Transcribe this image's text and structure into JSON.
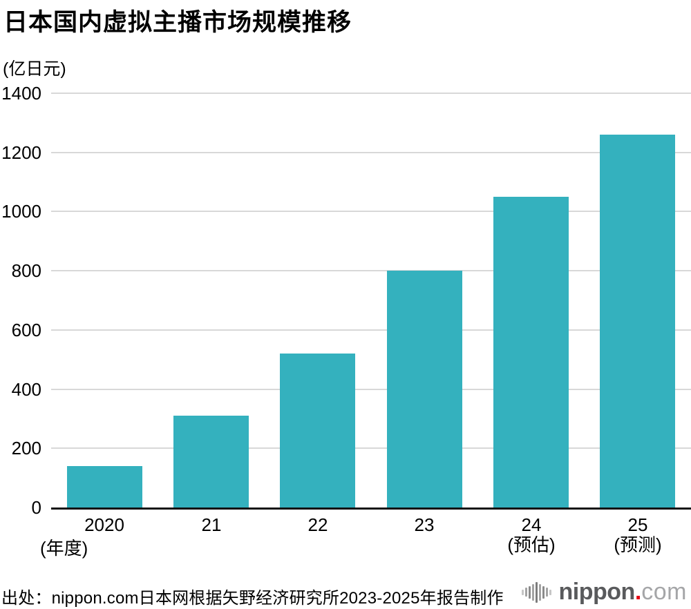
{
  "title": "日本国内虚拟主播市场规模推移",
  "y_unit": "(亿日元)",
  "x_unit": "(年度)",
  "source": "出处：nippon.com日本网根据矢野经济研究所2023-2025年报告制作",
  "logo": {
    "word": "nippon",
    "dot": ".",
    "tld": "com",
    "icon": "soundwave-bars-icon",
    "word_color": "#595a5c",
    "dot_color": "#e60012",
    "tld_color": "#a5a6a8"
  },
  "chart_data": {
    "type": "bar",
    "title": "日本国内虚拟主播市场规模推移",
    "ylabel": "(亿日元)",
    "xlabel": "(年度)",
    "categories": [
      "2020",
      "21",
      "22",
      "23",
      "24",
      "25"
    ],
    "category_sublabels": [
      "",
      "",
      "",
      "",
      "(预估)",
      "(预测)"
    ],
    "values": [
      140,
      310,
      520,
      800,
      1050,
      1260
    ],
    "ylim": [
      0,
      1400
    ],
    "yticks": [
      0,
      200,
      400,
      600,
      800,
      1000,
      1200,
      1400
    ],
    "grid": true,
    "legend_position": "none",
    "bar_color": "#34b1be",
    "gridline_color": "#d8d8d8",
    "axis_color": "#121212"
  }
}
